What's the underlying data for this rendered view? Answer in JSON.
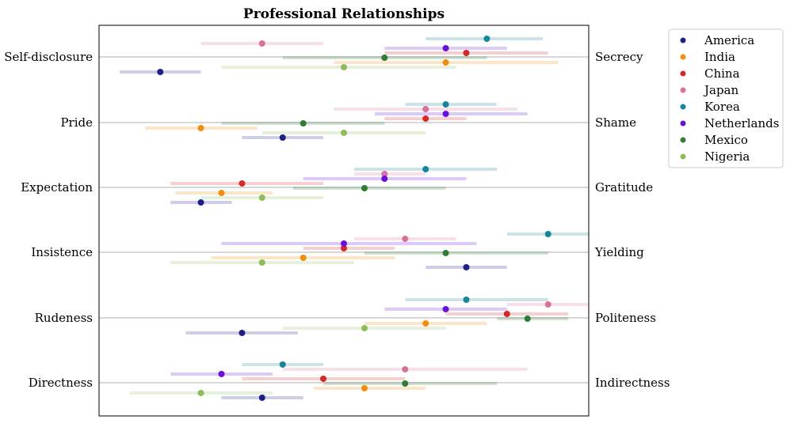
{
  "chart_data": {
    "type": "scatter",
    "title": "Professional Relationships",
    "xlim": [
      0,
      1
    ],
    "left_labels": [
      "Self-disclosure",
      "Pride",
      "Expectation",
      "Insistence",
      "Rudeness",
      "Directness"
    ],
    "right_labels": [
      "Secrecy",
      "Shame",
      "Gratitude",
      "Yielding",
      "Politeness",
      "Indirectness"
    ],
    "legend_position": "upper-right-outside",
    "series": [
      {
        "name": "America",
        "color": "#1f1f8c",
        "values": [
          0.125,
          0.375,
          0.208,
          0.75,
          0.292,
          0.333
        ],
        "ranges": [
          [
            0.042,
            0.208
          ],
          [
            0.292,
            0.458
          ],
          [
            0.146,
            0.271
          ],
          [
            0.667,
            0.833
          ],
          [
            0.177,
            0.406
          ],
          [
            0.25,
            0.417
          ]
        ]
      },
      {
        "name": "India",
        "color": "#f28e0f",
        "values": [
          0.708,
          0.208,
          0.25,
          0.417,
          0.667,
          0.542
        ],
        "ranges": [
          [
            0.479,
            0.938
          ],
          [
            0.094,
            0.323
          ],
          [
            0.156,
            0.354
          ],
          [
            0.229,
            0.604
          ],
          [
            0.542,
            0.792
          ],
          [
            0.438,
            0.667
          ]
        ]
      },
      {
        "name": "China",
        "color": "#d62828",
        "values": [
          0.75,
          0.667,
          0.292,
          0.5,
          0.833,
          0.458
        ],
        "ranges": [
          [
            0.583,
            0.917
          ],
          [
            0.583,
            0.75
          ],
          [
            0.146,
            0.458
          ],
          [
            0.417,
            0.604
          ],
          [
            0.708,
            0.958
          ],
          [
            0.292,
            0.625
          ]
        ]
      },
      {
        "name": "Japan",
        "color": "#d9729a",
        "values": [
          0.333,
          0.667,
          0.583,
          0.625,
          0.917,
          0.625
        ],
        "ranges": [
          [
            0.208,
            0.458
          ],
          [
            0.479,
            0.854
          ],
          [
            0.521,
            0.667
          ],
          [
            0.521,
            0.729
          ],
          [
            0.833,
            1.0
          ],
          [
            0.375,
            0.875
          ]
        ]
      },
      {
        "name": "Korea",
        "color": "#16869c",
        "values": [
          0.792,
          0.708,
          0.667,
          0.917,
          0.75,
          0.375
        ],
        "ranges": [
          [
            0.667,
            0.906
          ],
          [
            0.625,
            0.812
          ],
          [
            0.521,
            0.813
          ],
          [
            0.833,
            1.0
          ],
          [
            0.625,
            0.917
          ],
          [
            0.292,
            0.458
          ]
        ]
      },
      {
        "name": "Netherlands",
        "color": "#6a0fe0",
        "values": [
          0.708,
          0.708,
          0.583,
          0.5,
          0.708,
          0.25
        ],
        "ranges": [
          [
            0.583,
            0.833
          ],
          [
            0.563,
            0.875
          ],
          [
            0.417,
            0.75
          ],
          [
            0.25,
            0.771
          ],
          [
            0.583,
            0.833
          ],
          [
            0.146,
            0.354
          ]
        ]
      },
      {
        "name": "Mexico",
        "color": "#2e7d32",
        "values": [
          0.583,
          0.417,
          0.542,
          0.708,
          0.875,
          0.625
        ],
        "ranges": [
          [
            0.375,
            0.792
          ],
          [
            0.25,
            0.583
          ],
          [
            0.396,
            0.708
          ],
          [
            0.542,
            0.917
          ],
          [
            0.813,
            0.958
          ],
          [
            0.458,
            0.813
          ]
        ]
      },
      {
        "name": "Nigeria",
        "color": "#8fbc5a",
        "values": [
          0.5,
          0.5,
          0.333,
          0.333,
          0.542,
          0.208
        ],
        "ranges": [
          [
            0.25,
            0.729
          ],
          [
            0.333,
            0.667
          ],
          [
            0.208,
            0.458
          ],
          [
            0.146,
            0.521
          ],
          [
            0.375,
            0.708
          ],
          [
            0.063,
            0.354
          ]
        ]
      }
    ]
  }
}
